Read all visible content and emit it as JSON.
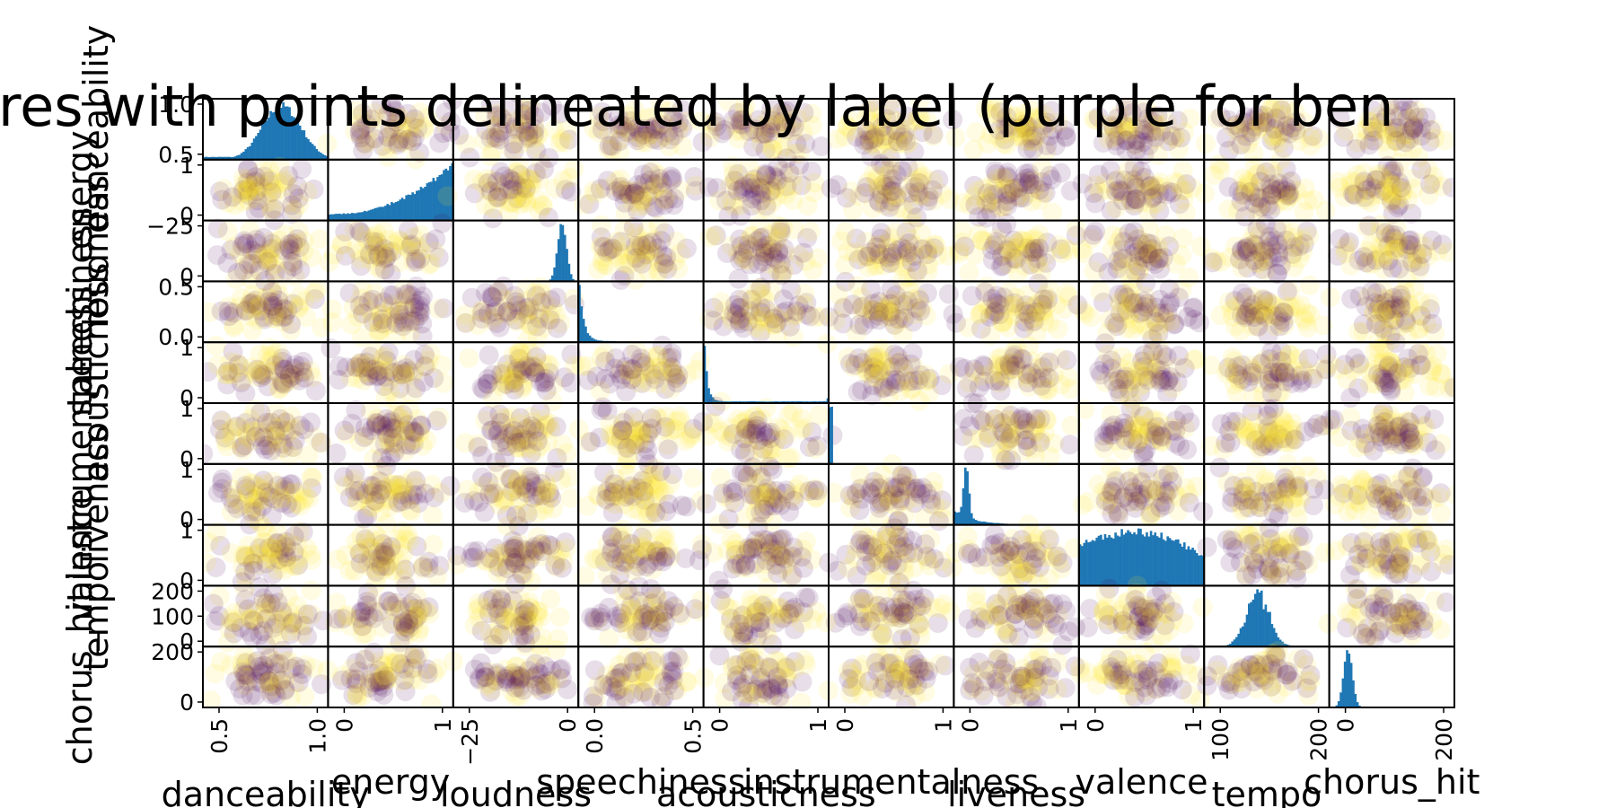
{
  "chart_data": {
    "type": "scatter",
    "title": "res with points delineated by label (purple for ben",
    "variables": [
      "danceability",
      "energy",
      "loudness",
      "speechiness",
      "acousticness",
      "instrumentalness",
      "liveness",
      "valence",
      "tempo",
      "chorus_hit"
    ],
    "row_axis_tick_labels": [
      [
        "0.5",
        "1.0"
      ],
      [
        "0",
        "1"
      ],
      [
        "0",
        "−25"
      ],
      [
        "0.0",
        "0.5"
      ],
      [
        "0",
        "1"
      ],
      [
        "0",
        "1"
      ],
      [
        "0",
        "1"
      ],
      [
        "0",
        "1"
      ],
      [
        "0",
        "100",
        "200"
      ],
      [
        "0",
        "200"
      ]
    ],
    "column_axis_tick_labels": [
      [
        "0.5",
        "1.0"
      ],
      [
        "0",
        "1"
      ],
      [
        "−25",
        "0"
      ],
      [
        "0.0",
        "0.5"
      ],
      [
        "0",
        "1"
      ],
      [
        "0",
        "1"
      ],
      [
        "0",
        "1"
      ],
      [
        "0",
        "1"
      ],
      [
        "100",
        "200"
      ],
      [
        "0",
        "200"
      ]
    ],
    "label_colors": {
      "benign": "#440154",
      "other": "#fde725"
    },
    "histogram_color": "#1f77b4",
    "diagonal": "histogram",
    "offdiagonal": "scatter",
    "grid": false,
    "legend": "none"
  }
}
